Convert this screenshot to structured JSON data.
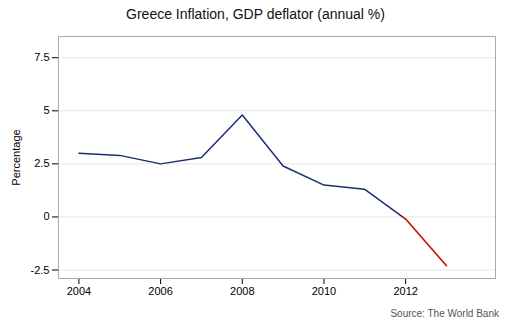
{
  "chart_data": {
    "type": "line",
    "title": "Greece Inflation, GDP deflator (annual %)",
    "ylabel": "Percentage",
    "annotations": [
      "Source: The World Bank"
    ],
    "x": [
      2004,
      2005,
      2006,
      2007,
      2008,
      2009,
      2010,
      2011,
      2012,
      2013
    ],
    "values": [
      3.0,
      2.9,
      2.5,
      2.8,
      4.8,
      2.4,
      1.5,
      1.3,
      -0.1,
      -2.3
    ],
    "colors": [
      "#1a2f6e",
      "#cc0000"
    ],
    "xlim": [
      2003.5,
      2014.2
    ],
    "ylim": [
      -2.9,
      8.5
    ],
    "xticks": [
      2004,
      2006,
      2008,
      2010,
      2012
    ],
    "yticks": [
      -2.5,
      0,
      2.5,
      5,
      7.5
    ],
    "grid": "y"
  }
}
